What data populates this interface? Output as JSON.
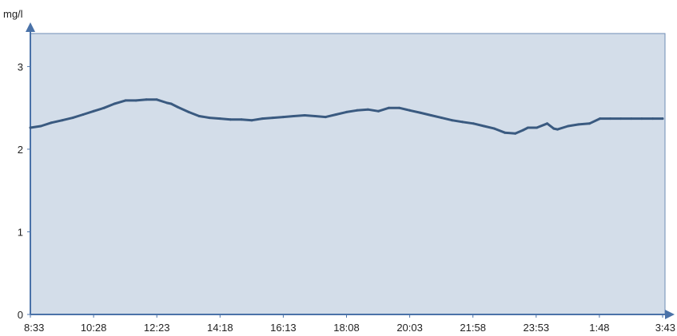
{
  "chart_data": {
    "type": "line",
    "ylabel": "mg/l",
    "ylim": [
      0,
      3.4
    ],
    "y_ticks": [
      0,
      1,
      2,
      3
    ],
    "x_tick_labels": [
      "8:33",
      "10:28",
      "12:23",
      "14:18",
      "16:13",
      "18:08",
      "20:03",
      "21:58",
      "23:53",
      "1:48",
      "3:43"
    ],
    "x_unit": "minutes after 8:33",
    "xlim": [
      0,
      1150
    ],
    "grid": false,
    "colors": {
      "plot_background": "#d3dde9",
      "line": "#3a5a80",
      "axis": "#4a72a8"
    },
    "series": [
      {
        "x": [
          0,
          19,
          38,
          58,
          77,
          96,
          115,
          134,
          153,
          173,
          192,
          211,
          230,
          249,
          256,
          268,
          288,
          307,
          326,
          345,
          364,
          384,
          403,
          422,
          441,
          460,
          479,
          499,
          518,
          537,
          556,
          575,
          594,
          614,
          633,
          652,
          671,
          690,
          710,
          729,
          748,
          767,
          786,
          806,
          825,
          844,
          863,
          882,
          896,
          905,
          921,
          940,
          952,
          959,
          978,
          997,
          1017,
          1036,
          1055,
          1074,
          1093,
          1112,
          1132,
          1150
        ],
        "values": [
          2.26,
          2.28,
          2.32,
          2.35,
          2.38,
          2.42,
          2.46,
          2.5,
          2.55,
          2.59,
          2.59,
          2.6,
          2.6,
          2.56,
          2.55,
          2.51,
          2.45,
          2.4,
          2.38,
          2.37,
          2.36,
          2.36,
          2.35,
          2.37,
          2.38,
          2.39,
          2.4,
          2.41,
          2.4,
          2.39,
          2.42,
          2.45,
          2.47,
          2.48,
          2.46,
          2.5,
          2.5,
          2.47,
          2.44,
          2.41,
          2.38,
          2.35,
          2.33,
          2.31,
          2.28,
          2.25,
          2.2,
          2.19,
          2.23,
          2.26,
          2.26,
          2.31,
          2.25,
          2.24,
          2.28,
          2.3,
          2.31,
          2.37,
          2.37,
          2.37,
          2.37,
          2.37,
          2.37,
          2.37
        ]
      }
    ]
  }
}
